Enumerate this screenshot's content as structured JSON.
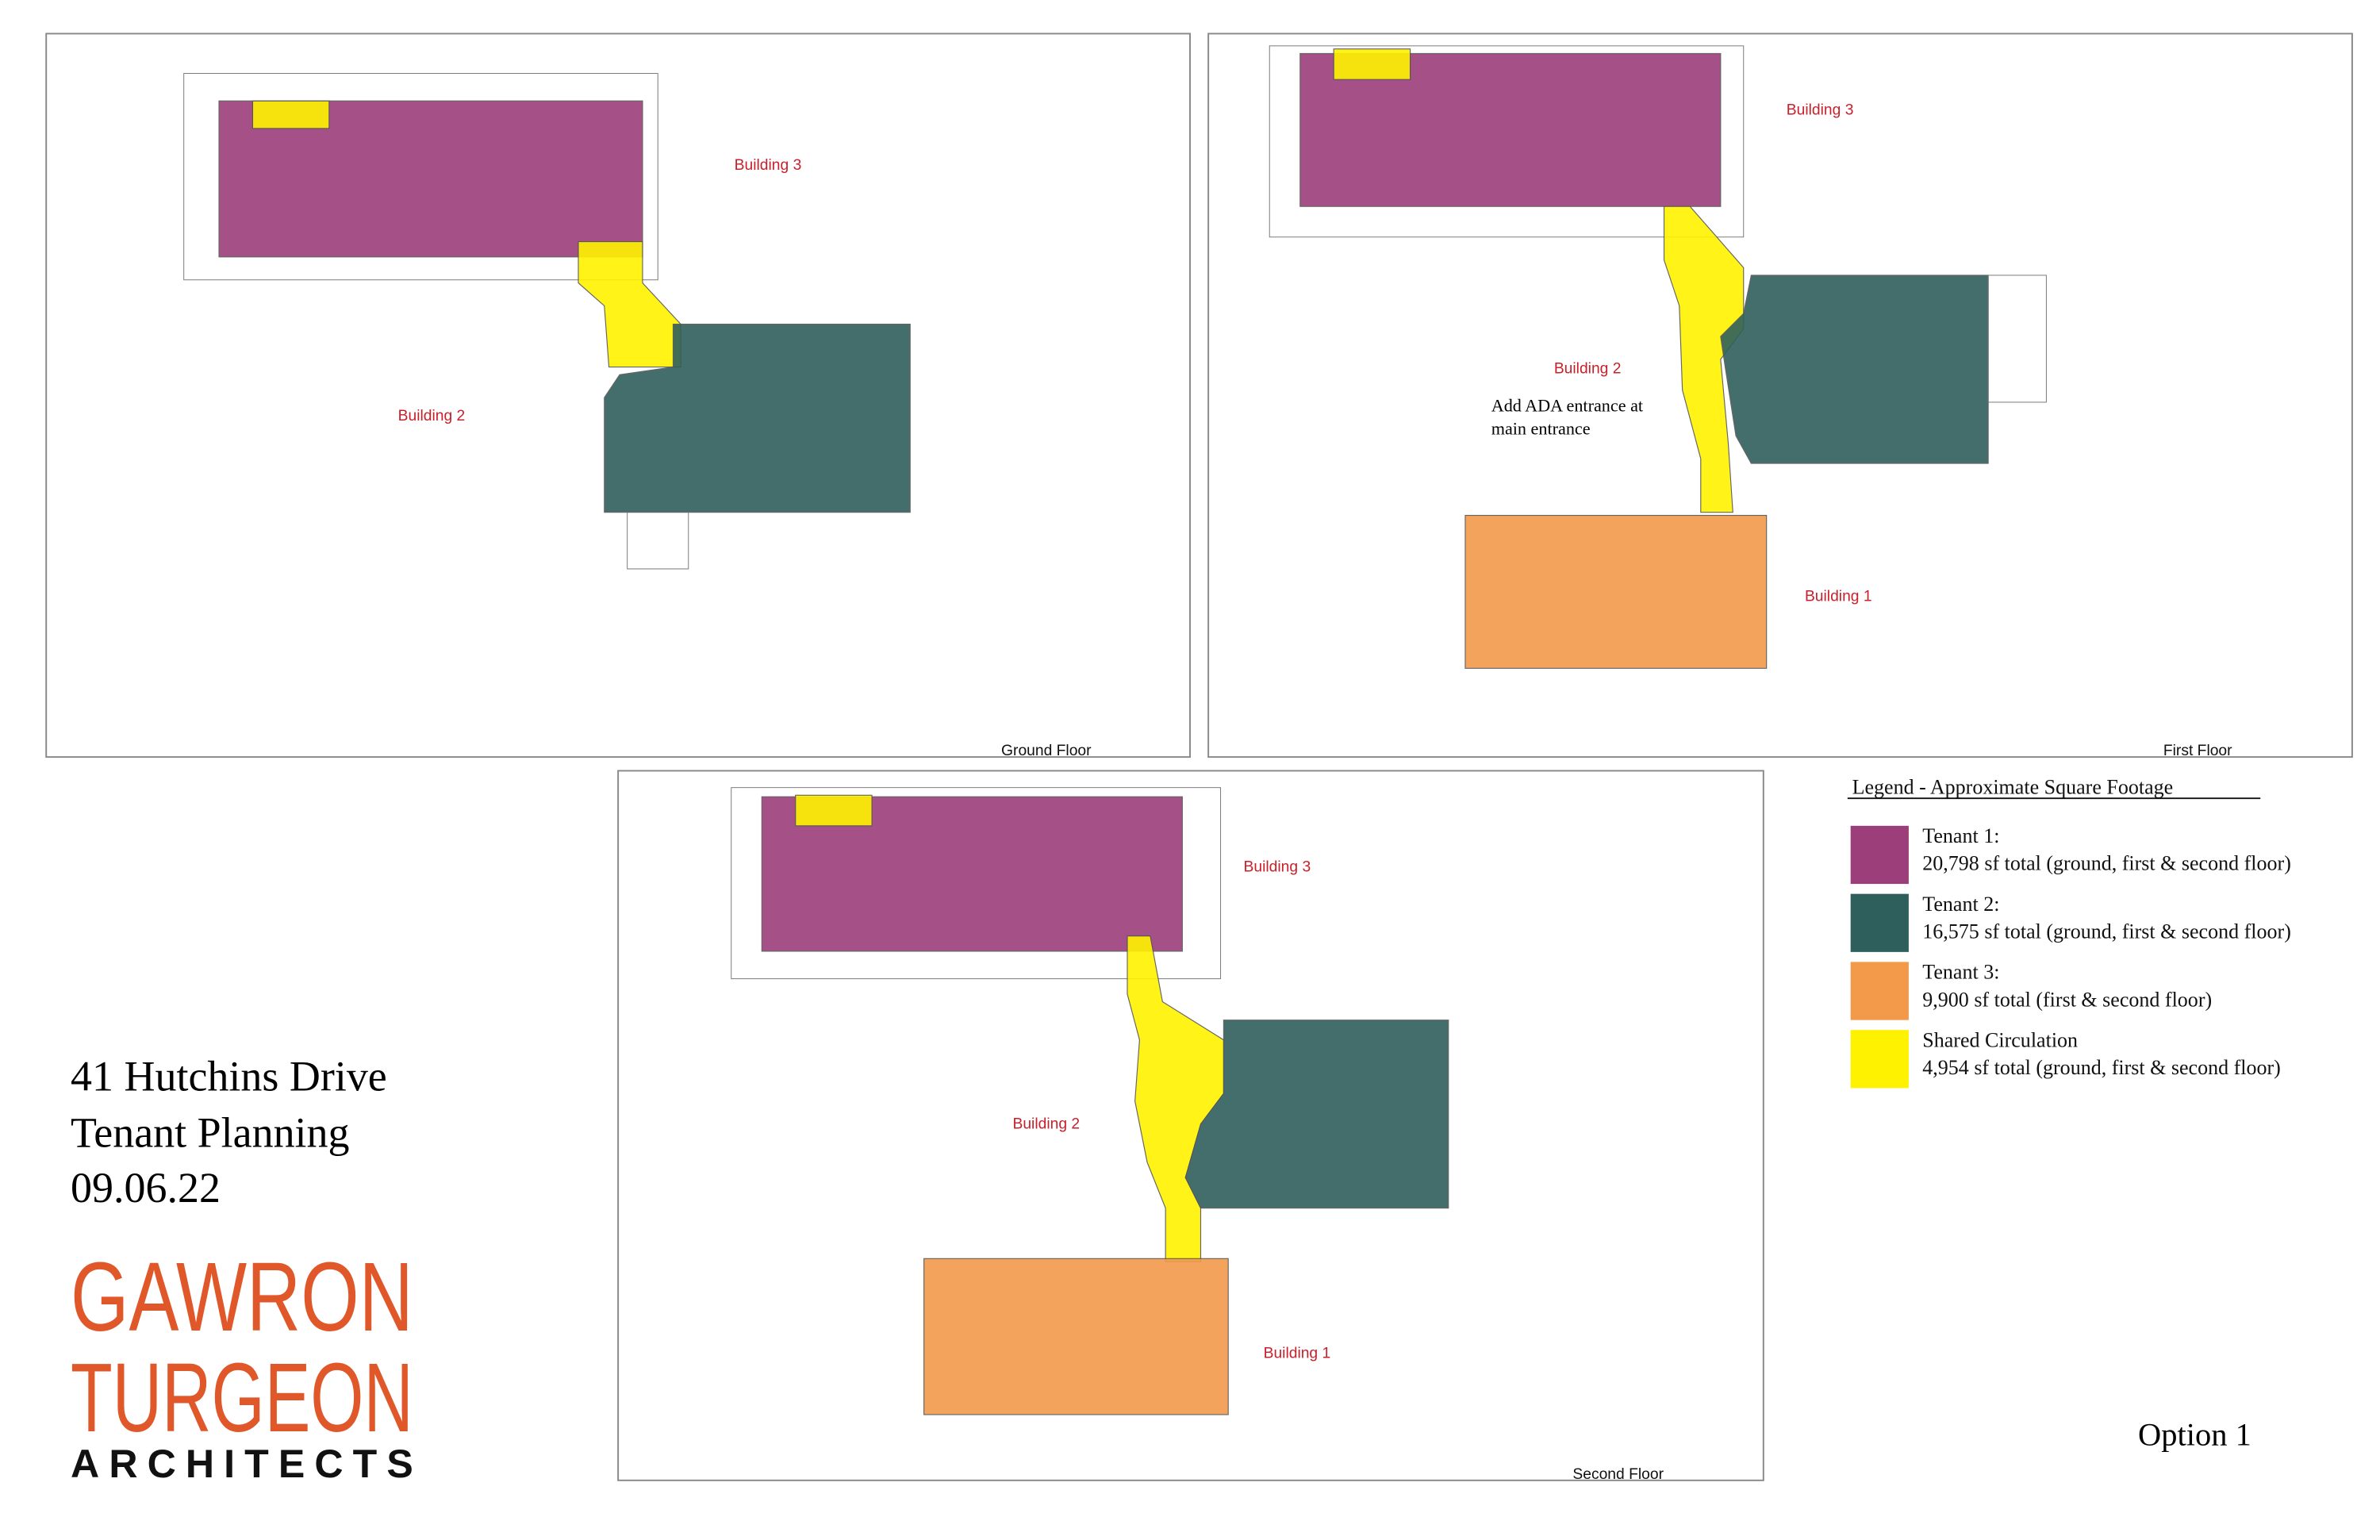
{
  "panels": [
    {
      "floor": "Ground Floor",
      "buildings": [
        "Building 3",
        "Building 2"
      ]
    },
    {
      "floor": "First Floor",
      "buildings": [
        "Building 3",
        "Building 2",
        "Building 1"
      ],
      "note": [
        "Add ADA entrance at",
        "main entrance"
      ]
    },
    {
      "floor": "Second Floor",
      "buildings": [
        "Building 3",
        "Building 2",
        "Building 1"
      ]
    }
  ],
  "legend": {
    "title": "Legend - Approximate Square Footage",
    "items": [
      {
        "name": "Tenant 1:",
        "detail": "20,798 sf total (ground, first & second floor)",
        "color": "#9c3e79"
      },
      {
        "name": "Tenant 2:",
        "detail": "16,575 sf total (ground, first & second floor)",
        "color": "#2f5f5c"
      },
      {
        "name": "Tenant 3:",
        "detail": "9,900 sf total (first & second floor)",
        "color": "#f29a4a"
      },
      {
        "name": "Shared Circulation",
        "detail": "4,954 sf total (ground, first & second floor)",
        "color": "#fff200"
      }
    ]
  },
  "project": {
    "lines": [
      "41 Hutchins Drive",
      "Tenant Planning",
      "09.06.22"
    ]
  },
  "logo": {
    "lines": [
      "GAWRON",
      "TURGEON",
      "ARCHITECTS"
    ]
  },
  "option": "Option 1"
}
